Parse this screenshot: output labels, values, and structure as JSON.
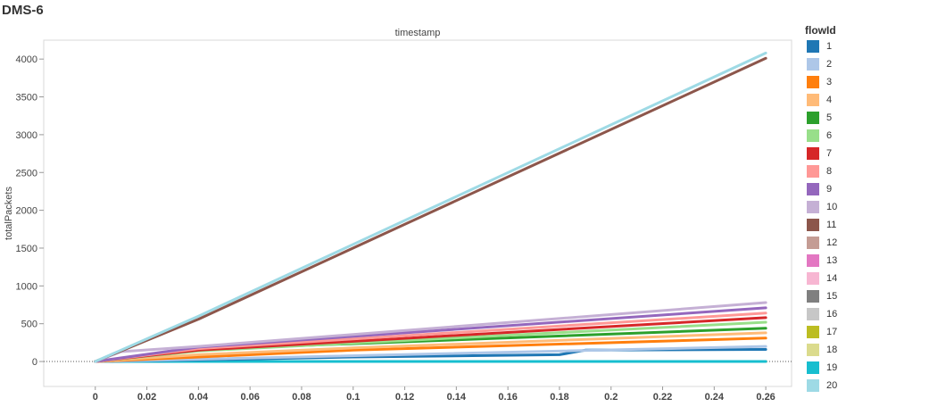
{
  "title": "DMS-6",
  "chart_data": {
    "type": "line",
    "title": "timestamp",
    "xlabel": "",
    "ylabel": "totalPackets",
    "xlim": [
      -0.02,
      0.27
    ],
    "ylim": [
      -330,
      4250
    ],
    "x_ticks": [
      0,
      0.02,
      0.04,
      0.06,
      0.08,
      0.1,
      0.12,
      0.14,
      0.16,
      0.18,
      0.2,
      0.22,
      0.24,
      0.26
    ],
    "x_tick_labels": [
      "0",
      "0.02",
      "0.04",
      "0.06",
      "0.08",
      "0.1",
      "0.12",
      "0.14",
      "0.16",
      "0.18",
      "0.2",
      "0.22",
      "0.24",
      "0.26"
    ],
    "y_ticks": [
      0,
      500,
      1000,
      1500,
      2000,
      2500,
      3000,
      3500,
      4000
    ],
    "y_tick_labels": [
      "0",
      "500",
      "1000",
      "1500",
      "2000",
      "2500",
      "3000",
      "3500",
      "4000"
    ],
    "legend_title": "flowId",
    "legend_position": "right",
    "series": [
      {
        "name": "1",
        "color": "#1f77b4",
        "x": [
          0,
          0.04,
          0.1,
          0.18,
          0.19,
          0.26
        ],
        "y": [
          0,
          20,
          60,
          90,
          150,
          160
        ]
      },
      {
        "name": "2",
        "color": "#aec7e8",
        "x": [
          0,
          0.04,
          0.26
        ],
        "y": [
          0,
          30,
          200
        ]
      },
      {
        "name": "3",
        "color": "#ff7f0e",
        "x": [
          0,
          0.04,
          0.1,
          0.26
        ],
        "y": [
          0,
          60,
          150,
          310
        ]
      },
      {
        "name": "4",
        "color": "#ffbb78",
        "x": [
          0,
          0.04,
          0.1,
          0.26
        ],
        "y": [
          0,
          90,
          180,
          380
        ]
      },
      {
        "name": "5",
        "color": "#2ca02c",
        "x": [
          0,
          0.04,
          0.26
        ],
        "y": [
          0,
          160,
          440
        ]
      },
      {
        "name": "6",
        "color": "#98df8a",
        "x": [
          0,
          0.04,
          0.26
        ],
        "y": [
          0,
          140,
          520
        ]
      },
      {
        "name": "7",
        "color": "#d62728",
        "x": [
          0,
          0.04,
          0.26
        ],
        "y": [
          0,
          150,
          580
        ]
      },
      {
        "name": "8",
        "color": "#ff9896",
        "x": [
          0,
          0.04,
          0.26
        ],
        "y": [
          0,
          170,
          640
        ]
      },
      {
        "name": "9",
        "color": "#9467bd",
        "x": [
          0,
          0.04,
          0.26
        ],
        "y": [
          0,
          190,
          710
        ]
      },
      {
        "name": "10",
        "color": "#c5b0d5",
        "x": [
          0,
          0.01,
          0.04,
          0.26
        ],
        "y": [
          0,
          130,
          200,
          780
        ]
      },
      {
        "name": "11",
        "color": "#8c564b",
        "x": [
          0,
          0.04,
          0.26
        ],
        "y": [
          0,
          560,
          4010
        ]
      },
      {
        "name": "12",
        "color": "#c49c94",
        "x": [
          0,
          0.26
        ],
        "y": [
          0,
          0
        ]
      },
      {
        "name": "13",
        "color": "#e377c2",
        "x": [
          0,
          0.26
        ],
        "y": [
          0,
          0
        ]
      },
      {
        "name": "14",
        "color": "#f7b6d2",
        "x": [
          0,
          0.26
        ],
        "y": [
          0,
          0
        ]
      },
      {
        "name": "15",
        "color": "#7f7f7f",
        "x": [
          0,
          0.26
        ],
        "y": [
          0,
          0
        ]
      },
      {
        "name": "16",
        "color": "#c7c7c7",
        "x": [
          0,
          0.26
        ],
        "y": [
          0,
          0
        ]
      },
      {
        "name": "17",
        "color": "#bcbd22",
        "x": [
          0,
          0.26
        ],
        "y": [
          0,
          0
        ]
      },
      {
        "name": "18",
        "color": "#dbdb8d",
        "x": [
          0,
          0.26
        ],
        "y": [
          0,
          0
        ]
      },
      {
        "name": "19",
        "color": "#17becf",
        "x": [
          0,
          0.26
        ],
        "y": [
          0,
          0
        ]
      },
      {
        "name": "20",
        "color": "#9edae5",
        "x": [
          0,
          0.04,
          0.26
        ],
        "y": [
          0,
          600,
          4080
        ]
      }
    ]
  }
}
